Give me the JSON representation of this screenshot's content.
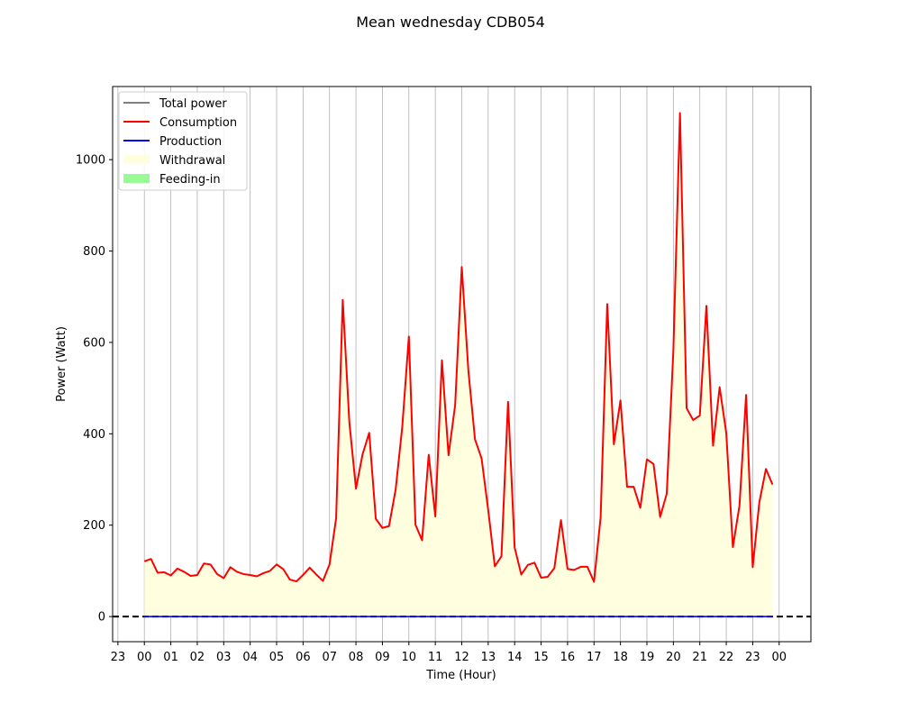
{
  "chart_data": {
    "type": "line",
    "title": "Mean wednesday CDB054",
    "xlabel": "Time (Hour)",
    "ylabel": "Power (Watt)",
    "x_tick_labels": [
      "23",
      "00",
      "01",
      "02",
      "03",
      "04",
      "05",
      "06",
      "07",
      "08",
      "09",
      "10",
      "11",
      "12",
      "13",
      "14",
      "15",
      "16",
      "17",
      "18",
      "19",
      "20",
      "21",
      "22",
      "23",
      "00"
    ],
    "x_tick_hours": [
      -1,
      0,
      1,
      2,
      3,
      4,
      5,
      6,
      7,
      8,
      9,
      10,
      11,
      12,
      13,
      14,
      15,
      16,
      17,
      18,
      19,
      20,
      21,
      22,
      23,
      24
    ],
    "xlim_hours": [
      -1.2,
      25.2
    ],
    "ylim": [
      -55,
      1160
    ],
    "y_ticks": [
      0,
      200,
      400,
      600,
      800,
      1000
    ],
    "grid": "vertical",
    "legend_position": "top-left",
    "legend": [
      {
        "label": "Total power",
        "kind": "line",
        "color": "#808080"
      },
      {
        "label": "Consumption",
        "kind": "line",
        "color": "#ff0000"
      },
      {
        "label": "Production",
        "kind": "line",
        "color": "#0000ff"
      },
      {
        "label": "Withdrawal",
        "kind": "patch",
        "color": "#ffffe0"
      },
      {
        "label": "Feeding-in",
        "kind": "patch",
        "color": "#98fb98"
      }
    ],
    "x_step_hours": 0.25,
    "series": [
      {
        "name": "Consumption",
        "color": "#ff0000",
        "values": [
          121,
          126,
          96,
          97,
          90,
          105,
          98,
          89,
          91,
          116,
          114,
          93,
          84,
          108,
          98,
          93,
          91,
          88,
          95,
          100,
          114,
          104,
          81,
          77,
          91,
          107,
          92,
          78,
          114,
          215,
          693,
          425,
          280,
          355,
          402,
          214,
          194,
          198,
          278,
          415,
          613,
          201,
          167,
          354,
          219,
          561,
          353,
          463,
          765,
          538,
          388,
          346,
          233,
          110,
          132,
          470,
          151,
          92,
          113,
          118,
          85,
          87,
          106,
          211,
          104,
          102,
          109,
          109,
          76,
          217,
          684,
          377,
          473,
          284,
          284,
          238,
          344,
          334,
          218,
          269,
          582,
          1102,
          456,
          430,
          440,
          680,
          374,
          502,
          402,
          152,
          243,
          485,
          108,
          250,
          323,
          289
        ]
      },
      {
        "name": "Production",
        "color": "#0000ff",
        "values": [
          0
        ]
      },
      {
        "name": "Total power",
        "color": "#808080",
        "values": [
          0
        ]
      }
    ],
    "reference_line": {
      "y": 0,
      "style": "dashed",
      "color": "#000000"
    }
  }
}
